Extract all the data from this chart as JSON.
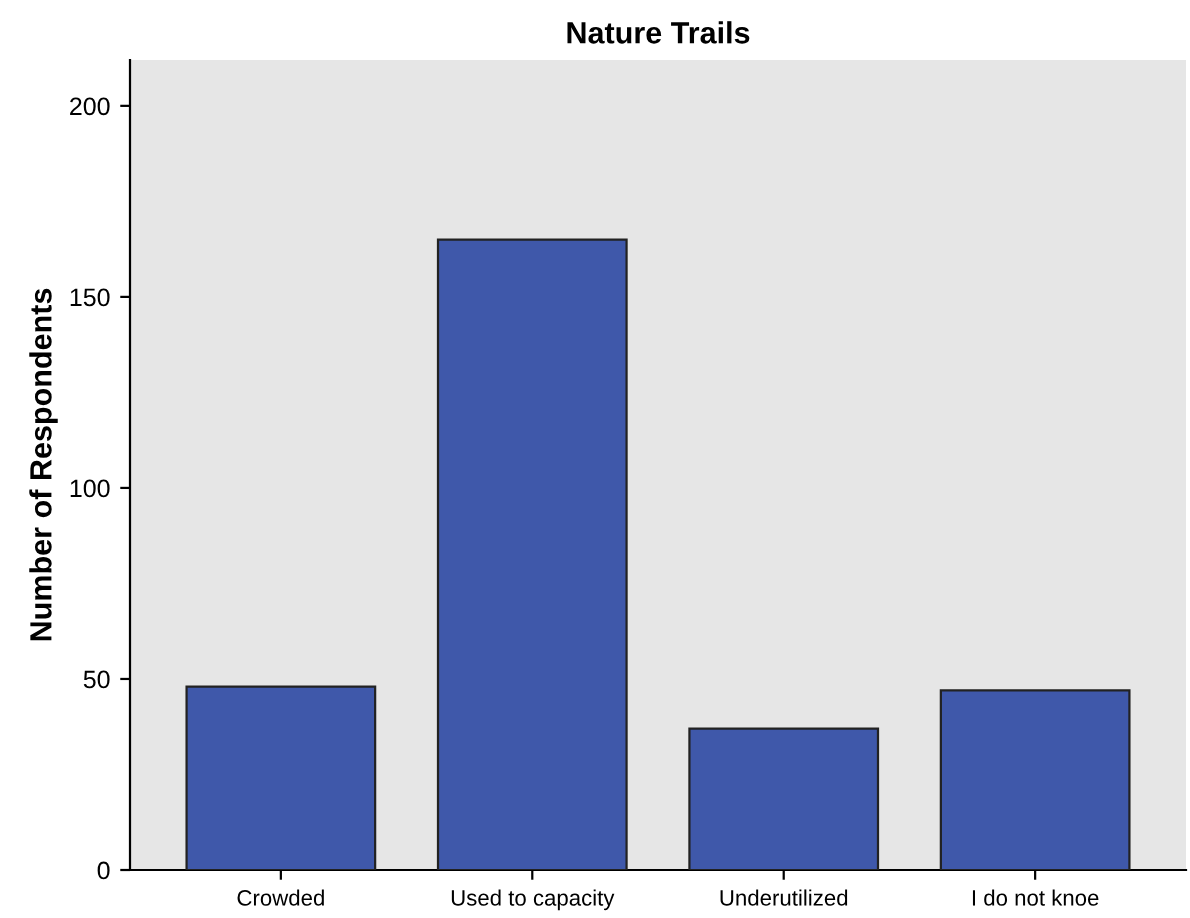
{
  "chart_data": {
    "type": "bar",
    "title": "Nature Trails",
    "ylabel": "Number of Respondents",
    "categories": [
      "Crowded",
      "Used to capacity",
      "Underutilized",
      "I do not knoe"
    ],
    "values": [
      48,
      165,
      37,
      47
    ],
    "color": "#3f58aa",
    "ylim": [
      0,
      212
    ],
    "yticks": [
      0,
      50,
      100,
      150,
      200
    ],
    "grid": false
  }
}
